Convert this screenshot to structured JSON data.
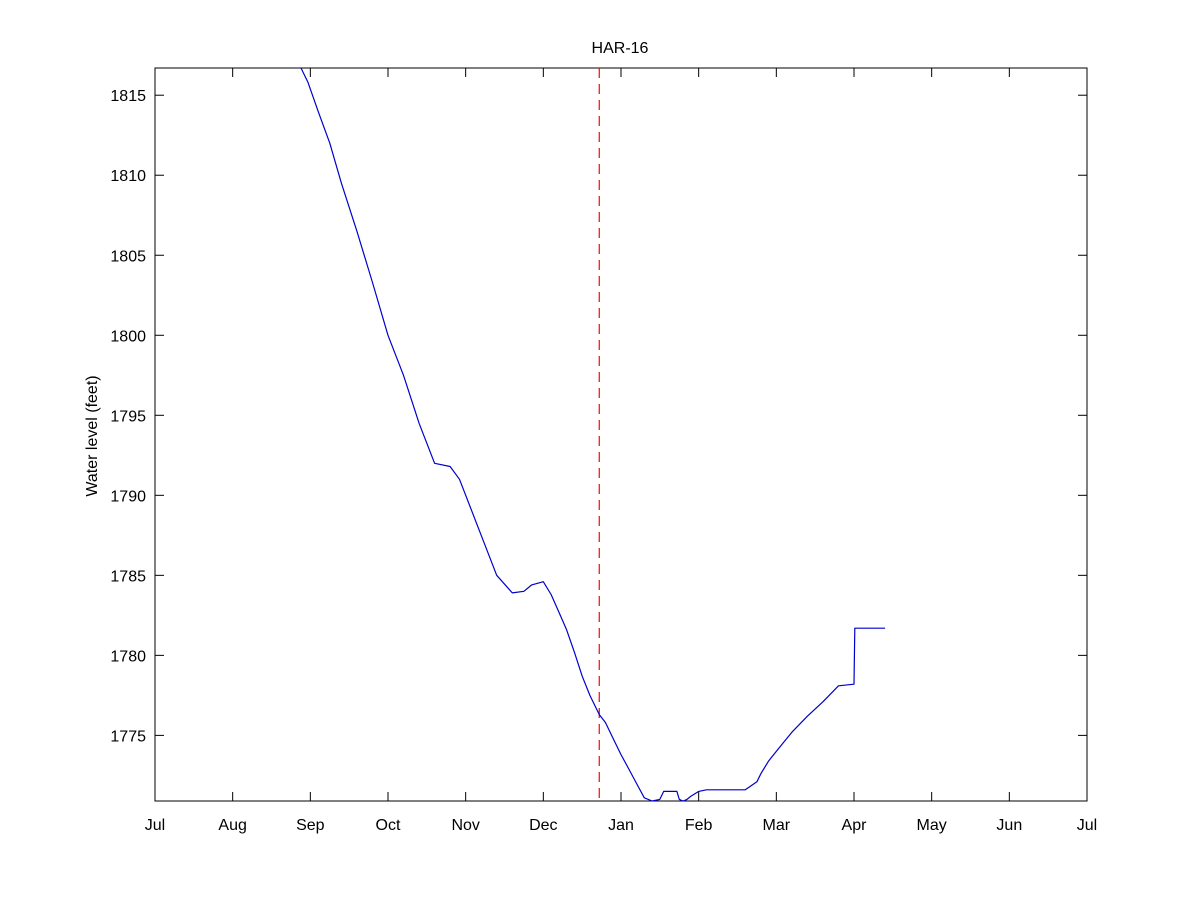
{
  "chart_data": {
    "type": "line",
    "title": "HAR-16",
    "xlabel": "",
    "ylabel": "Water level (feet)",
    "x_ticks": [
      "Jul",
      "Aug",
      "Sep",
      "Oct",
      "Nov",
      "Dec",
      "Jan",
      "Feb",
      "Mar",
      "Apr",
      "May",
      "Jun",
      "Jul"
    ],
    "xlim": [
      0,
      12
    ],
    "y_ticks": [
      1775,
      1780,
      1785,
      1790,
      1795,
      1800,
      1805,
      1810,
      1815
    ],
    "ylim": [
      1770.9,
      1816.7
    ],
    "grid": false,
    "series": [
      {
        "color": "#0000cc",
        "x": [
          1.88,
          1.97,
          2.1,
          2.25,
          2.4,
          2.6,
          2.8,
          3.0,
          3.2,
          3.4,
          3.6,
          3.8,
          3.92,
          4.0,
          4.2,
          4.4,
          4.6,
          4.75,
          4.85,
          5.0,
          5.1,
          5.2,
          5.3,
          5.4,
          5.5,
          5.6,
          5.72,
          5.8,
          5.9,
          6.0,
          6.1,
          6.2,
          6.3,
          6.4,
          6.5,
          6.55,
          6.58,
          6.72,
          6.75,
          6.8,
          6.85,
          6.9,
          7.0,
          7.1,
          7.2,
          7.4,
          7.6,
          7.75,
          7.8,
          7.9,
          8.0,
          8.1,
          8.2,
          8.4,
          8.6,
          8.8,
          9.0,
          9.01,
          9.2,
          9.4
        ],
        "y": [
          1816.7,
          1815.8,
          1814.0,
          1812.0,
          1809.5,
          1806.5,
          1803.3,
          1800.0,
          1797.5,
          1794.5,
          1792.0,
          1791.8,
          1791.0,
          1790.0,
          1787.5,
          1785.0,
          1783.9,
          1784.0,
          1784.4,
          1784.6,
          1783.8,
          1782.7,
          1781.6,
          1780.2,
          1778.7,
          1777.5,
          1776.3,
          1775.8,
          1774.8,
          1773.8,
          1772.9,
          1772.0,
          1771.1,
          1770.9,
          1771.0,
          1771.5,
          1771.5,
          1771.5,
          1771.0,
          1770.9,
          1771.0,
          1771.2,
          1771.5,
          1771.6,
          1771.6,
          1771.6,
          1771.6,
          1772.1,
          1772.6,
          1773.4,
          1774.0,
          1774.6,
          1775.2,
          1776.2,
          1777.1,
          1778.1,
          1778.2,
          1781.7,
          1781.7,
          1781.7
        ]
      }
    ],
    "reference_line": {
      "x": 5.72,
      "color": "#ff0000",
      "style": "dashed"
    }
  }
}
